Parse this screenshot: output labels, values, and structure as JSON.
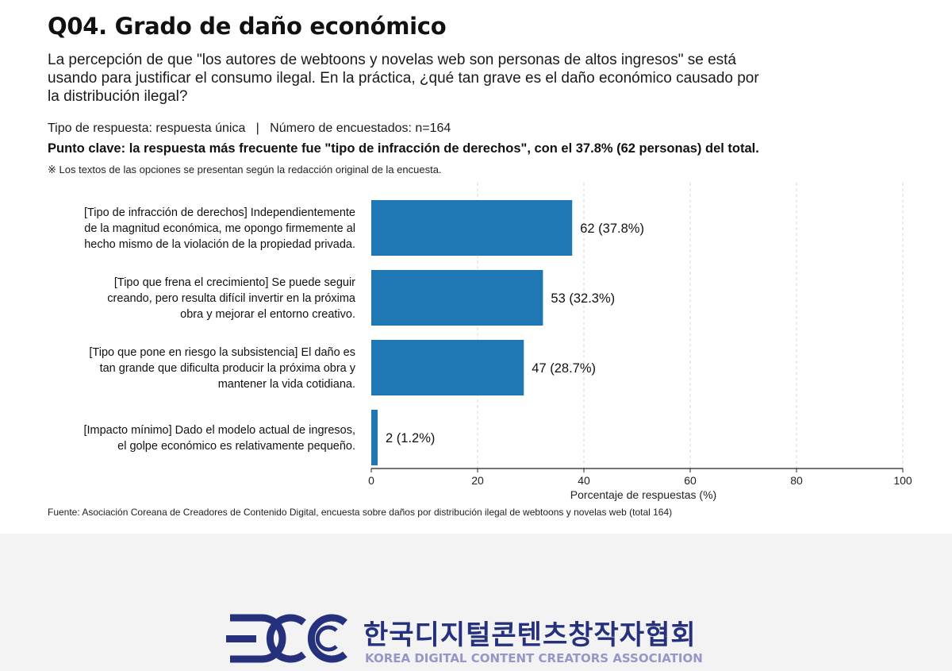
{
  "header": {
    "title": "Q04. Grado de daño económico",
    "question": "La percepción de que \"los autores de webtoons y novelas web son personas de altos ingresos\" se está usando para justificar el consumo ilegal. En la práctica, ¿qué tan grave es el daño económico causado por la distribución ilegal?",
    "meta": "Tipo de respuesta: respuesta única   |   Número de encuestados: n=164",
    "keypoint": "Punto clave: la respuesta más frecuente fue \"tipo de infracción de derechos\", con el 37.8% (62 personas) del total.",
    "note": "※ Los textos de las opciones se presentan según la redacción original de la encuesta."
  },
  "chart_data": {
    "type": "bar",
    "orientation": "horizontal",
    "categories": [
      [
        "[Tipo de infracción de derechos] Independientemente",
        "de la magnitud económica, me opongo firmemente al",
        "hecho mismo de la violación de la propiedad privada."
      ],
      [
        "[Tipo que frena el crecimiento] Se puede seguir",
        "creando, pero resulta difícil invertir en la próxima",
        "obra y mejorar el entorno creativo."
      ],
      [
        "[Tipo que pone en riesgo la subsistencia] El daño es",
        "tan grande que dificulta producir la próxima obra y",
        "mantener la vida cotidiana."
      ],
      [
        "[Impacto mínimo] Dado el modelo actual de ingresos,",
        "el golpe económico es relativamente pequeño."
      ]
    ],
    "values": [
      37.8,
      32.3,
      28.7,
      1.2
    ],
    "data_labels": [
      "62 (37.8%)",
      "53 (32.3%)",
      "47 (28.7%)",
      "2 (1.2%)"
    ],
    "xlim": [
      0,
      100
    ],
    "xticks": [
      "0",
      "20",
      "40",
      "60",
      "80",
      "100"
    ],
    "xlabel": "Porcentaje de respuestas (%)",
    "bar_color": "#1f77b4",
    "grid": "vertical dashed"
  },
  "source": "Fuente: Asociación Coreana de Creadores de Contenido Digital, encuesta sobre daños por distribución ilegal de webtoons y novelas web (total 164)",
  "footer": {
    "org_ko": "한국디지털콘텐츠창작자협회",
    "org_en": "KOREA DIGITAL CONTENT CREATORS ASSOCIATION",
    "logo_color": "#25317c",
    "subtitle_color": "#9597c6"
  }
}
